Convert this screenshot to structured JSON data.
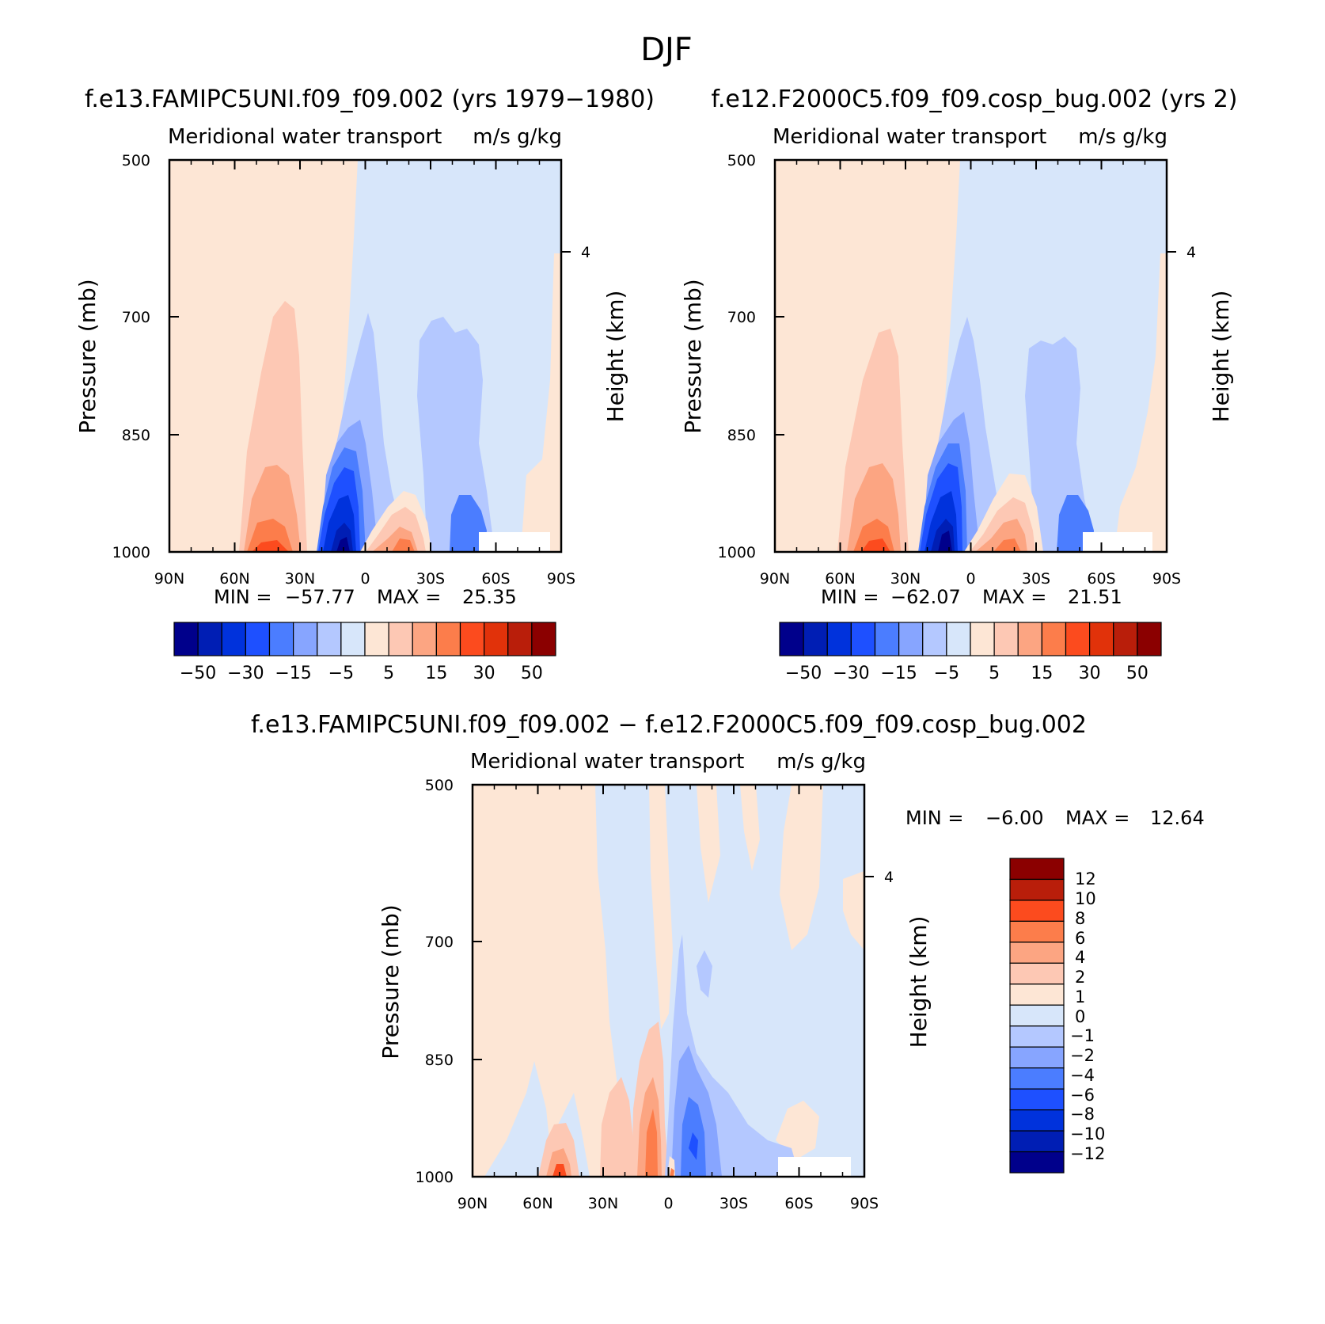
{
  "figure": {
    "title": "DJF"
  },
  "colors": {
    "abs_scale": [
      "#00008b",
      "#001eb4",
      "#0032dc",
      "#1e50ff",
      "#4b7dff",
      "#87a5ff",
      "#b4c8ff",
      "#d7e6fa",
      "#fde6d5",
      "#fdc8b4",
      "#fca582",
      "#fc7d4b",
      "#fc4b1e",
      "#e1320a",
      "#b91e0a",
      "#8b0000"
    ],
    "diff_scale": [
      "#00008b",
      "#001eb4",
      "#0032dc",
      "#1e50ff",
      "#4b7dff",
      "#87a5ff",
      "#b4c8ff",
      "#d7e6fa",
      "#fde6d5",
      "#fdc8b4",
      "#fca582",
      "#fc7d4b",
      "#fc4b1e",
      "#b91e0a",
      "#8b0000"
    ]
  },
  "chart_data": [
    {
      "type": "heatmap",
      "title": "f.e13.FAMIPC5UNI.f09_f09.002 (yrs 1979−1980)",
      "subtitle_left": "Meridional water transport",
      "subtitle_right": "m/s g/kg",
      "ylabel": "Pressure (mb)",
      "ylabel_right": "Height (km)",
      "y_ticks": [
        "500",
        "700",
        "850",
        "1000"
      ],
      "y_right_ticks": [
        "4"
      ],
      "x_ticks": [
        "90N",
        "60N",
        "30N",
        "0",
        "30S",
        "60S",
        "90S"
      ],
      "stats": {
        "min_label": "MIN =",
        "min": "−57.77",
        "max_label": "MAX =",
        "max": "25.35"
      },
      "levels": [
        -50,
        -40,
        -30,
        -20,
        -15,
        -10,
        -5,
        0,
        5,
        10,
        15,
        20,
        30,
        40,
        50
      ],
      "colorbar_labels": [
        "−50",
        "−30",
        "−15",
        "−5",
        "5",
        "15",
        "30",
        "50"
      ]
    },
    {
      "type": "heatmap",
      "title": "f.e12.F2000C5.f09_f09.cosp_bug.002 (yrs 2)",
      "subtitle_left": "Meridional water transport",
      "subtitle_right": "m/s g/kg",
      "ylabel": "Pressure (mb)",
      "ylabel_right": "Height (km)",
      "y_ticks": [
        "500",
        "700",
        "850",
        "1000"
      ],
      "y_right_ticks": [
        "4"
      ],
      "x_ticks": [
        "90N",
        "60N",
        "30N",
        "0",
        "30S",
        "60S",
        "90S"
      ],
      "stats": {
        "min_label": "MIN =",
        "min": "−62.07",
        "max_label": "MAX =",
        "max": "21.51"
      },
      "levels": [
        -50,
        -40,
        -30,
        -20,
        -15,
        -10,
        -5,
        0,
        5,
        10,
        15,
        20,
        30,
        40,
        50
      ],
      "colorbar_labels": [
        "−50",
        "−30",
        "−15",
        "−5",
        "5",
        "15",
        "30",
        "50"
      ]
    },
    {
      "type": "heatmap",
      "title": "f.e13.FAMIPC5UNI.f09_f09.002 − f.e12.F2000C5.f09_f09.cosp_bug.002",
      "subtitle_left": "Meridional water transport",
      "subtitle_right": "m/s g/kg",
      "ylabel": "Pressure (mb)",
      "ylabel_right": "Height (km)",
      "y_ticks": [
        "500",
        "700",
        "850",
        "1000"
      ],
      "y_right_ticks": [
        "4"
      ],
      "x_ticks": [
        "90N",
        "60N",
        "30N",
        "0",
        "30S",
        "60S",
        "90S"
      ],
      "stats": {
        "min_label": "MIN =",
        "min": "−6.00",
        "max_label": "MAX =",
        "max": "12.64"
      },
      "levels": [
        -12,
        -10,
        -8,
        -6,
        -4,
        -2,
        -1,
        0,
        1,
        2,
        4,
        6,
        8,
        10,
        12
      ],
      "colorbar_labels": [
        "12",
        "10",
        "8",
        "6",
        "4",
        "2",
        "1",
        "0",
        "−1",
        "−2",
        "−4",
        "−6",
        "−8",
        "−10",
        "−12"
      ]
    }
  ]
}
